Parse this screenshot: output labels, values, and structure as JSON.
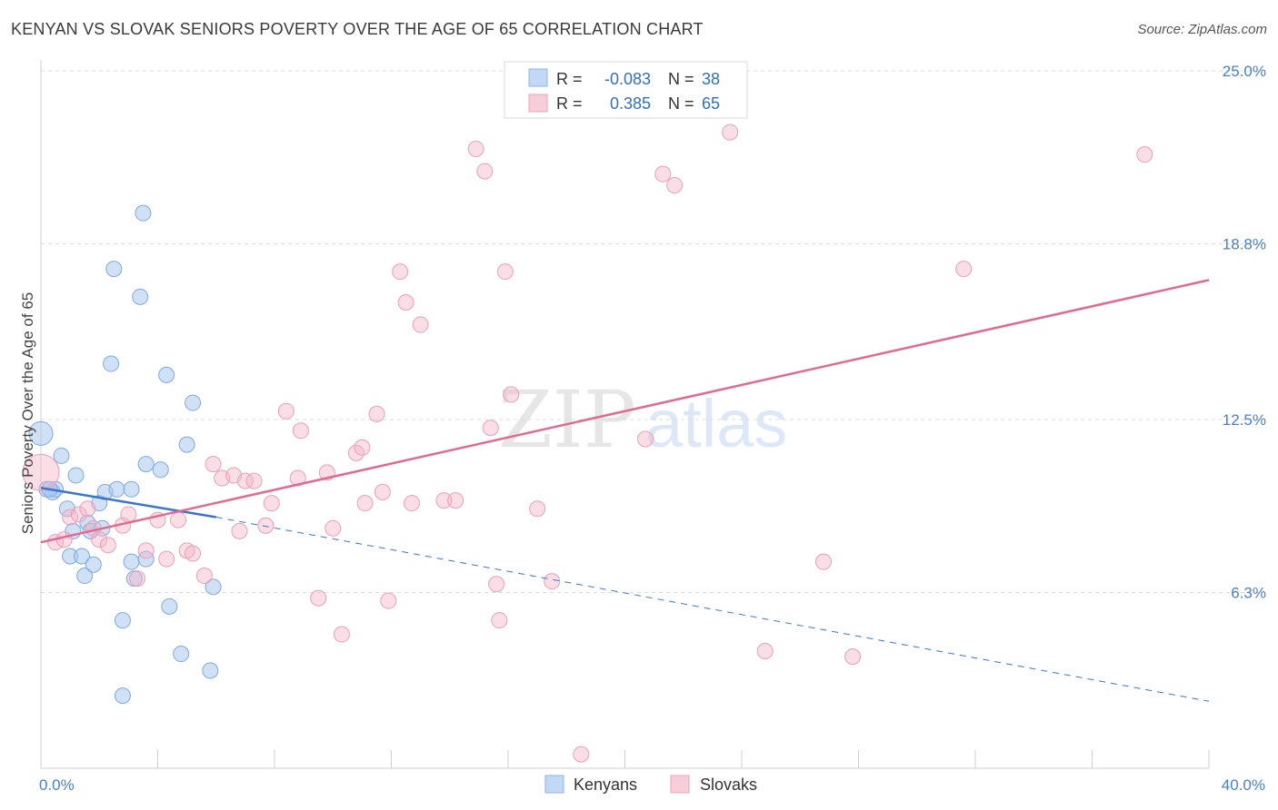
{
  "title": "KENYAN VS SLOVAK SENIORS POVERTY OVER THE AGE OF 65 CORRELATION CHART",
  "source": "Source: ZipAtlas.com",
  "watermark": {
    "zip": "ZIP",
    "atlas": "atlas"
  },
  "colors": {
    "kenyans": "#a9c8ef",
    "kenyans_line": "#3a76d0",
    "slovaks": "#f4b5c8",
    "slovaks_line": "#e06a92",
    "tick_text": "#4a7fd0"
  },
  "legend": {
    "rows": [
      {
        "r_label": "R =",
        "r_value": "-0.083",
        "n_label": "N =",
        "n_value": "38"
      },
      {
        "r_label": "R =",
        "r_value": "0.385",
        "n_label": "N =",
        "n_value": "65"
      }
    ]
  },
  "chart_data": {
    "type": "scatter",
    "title": "KENYAN VS SLOVAK SENIORS POVERTY OVER THE AGE OF 65 CORRELATION CHART",
    "xlabel": "",
    "ylabel": "Seniors Poverty Over the Age of 65",
    "xlim": [
      0,
      40
    ],
    "ylim": [
      0,
      25
    ],
    "x_tick_labels": [
      "0.0%",
      "40.0%"
    ],
    "y_ticks": [
      6.3,
      12.5,
      18.8,
      25.0
    ],
    "y_tick_labels": [
      "6.3%",
      "12.5%",
      "18.8%",
      "25.0%"
    ],
    "grid": true,
    "legend_position": "top-center and bottom",
    "series": [
      {
        "name": "Kenyans",
        "r": -0.083,
        "n": 38,
        "trend": {
          "x0": 0.0,
          "y0": 10.05,
          "x1": 6.0,
          "y1": 9.0,
          "dashed_to_x": 40.0,
          "dashed_to_y": 2.4
        },
        "points": [
          [
            0.0,
            12.0
          ],
          [
            0.2,
            10.0
          ],
          [
            0.4,
            9.9
          ],
          [
            0.5,
            10.0
          ],
          [
            0.7,
            11.2
          ],
          [
            0.9,
            9.3
          ],
          [
            1.0,
            7.6
          ],
          [
            1.1,
            8.5
          ],
          [
            1.2,
            10.5
          ],
          [
            1.4,
            7.6
          ],
          [
            1.5,
            6.9
          ],
          [
            1.6,
            8.8
          ],
          [
            1.7,
            8.5
          ],
          [
            1.8,
            7.3
          ],
          [
            2.0,
            9.5
          ],
          [
            2.1,
            8.6
          ],
          [
            2.2,
            9.9
          ],
          [
            2.4,
            14.5
          ],
          [
            2.5,
            17.9
          ],
          [
            2.6,
            10.0
          ],
          [
            2.8,
            5.3
          ],
          [
            2.8,
            2.6
          ],
          [
            3.1,
            10.0
          ],
          [
            3.1,
            7.4
          ],
          [
            3.2,
            6.8
          ],
          [
            3.4,
            16.9
          ],
          [
            3.5,
            19.9
          ],
          [
            3.6,
            7.5
          ],
          [
            3.6,
            10.9
          ],
          [
            4.1,
            10.7
          ],
          [
            4.3,
            14.1
          ],
          [
            4.4,
            5.8
          ],
          [
            4.8,
            4.1
          ],
          [
            5.0,
            11.6
          ],
          [
            5.2,
            13.1
          ],
          [
            5.8,
            3.5
          ],
          [
            5.9,
            6.5
          ],
          [
            0.3,
            10.0
          ]
        ]
      },
      {
        "name": "Slovaks",
        "r": 0.385,
        "n": 65,
        "trend": {
          "x0": 0.0,
          "y0": 8.1,
          "x1": 40.0,
          "y1": 17.5
        },
        "points": [
          [
            0.0,
            10.6
          ],
          [
            0.5,
            8.1
          ],
          [
            0.8,
            8.2
          ],
          [
            1.0,
            9.0
          ],
          [
            1.3,
            9.1
          ],
          [
            1.6,
            9.3
          ],
          [
            1.8,
            8.6
          ],
          [
            2.0,
            8.2
          ],
          [
            2.3,
            8.0
          ],
          [
            2.8,
            8.7
          ],
          [
            3.0,
            9.1
          ],
          [
            3.3,
            6.8
          ],
          [
            3.6,
            7.8
          ],
          [
            4.0,
            8.9
          ],
          [
            4.3,
            7.5
          ],
          [
            4.7,
            8.9
          ],
          [
            5.0,
            7.8
          ],
          [
            5.2,
            7.7
          ],
          [
            5.6,
            6.9
          ],
          [
            5.9,
            10.9
          ],
          [
            6.2,
            10.4
          ],
          [
            6.6,
            10.5
          ],
          [
            6.8,
            8.5
          ],
          [
            7.0,
            10.3
          ],
          [
            7.3,
            10.3
          ],
          [
            7.7,
            8.7
          ],
          [
            7.9,
            9.5
          ],
          [
            8.4,
            12.8
          ],
          [
            8.8,
            10.4
          ],
          [
            8.9,
            12.1
          ],
          [
            9.5,
            6.1
          ],
          [
            9.8,
            10.6
          ],
          [
            10.0,
            8.6
          ],
          [
            10.3,
            4.8
          ],
          [
            10.8,
            11.3
          ],
          [
            11.0,
            11.5
          ],
          [
            11.1,
            9.5
          ],
          [
            11.5,
            12.7
          ],
          [
            11.7,
            9.9
          ],
          [
            11.9,
            6.0
          ],
          [
            12.3,
            17.8
          ],
          [
            12.5,
            16.7
          ],
          [
            12.7,
            9.5
          ],
          [
            13.0,
            15.9
          ],
          [
            13.8,
            9.6
          ],
          [
            14.2,
            9.6
          ],
          [
            14.9,
            22.2
          ],
          [
            15.2,
            21.4
          ],
          [
            15.4,
            12.2
          ],
          [
            15.6,
            6.6
          ],
          [
            15.7,
            5.3
          ],
          [
            15.9,
            17.8
          ],
          [
            16.1,
            13.4
          ],
          [
            17.0,
            9.3
          ],
          [
            17.5,
            6.7
          ],
          [
            18.5,
            0.5
          ],
          [
            20.7,
            11.8
          ],
          [
            21.3,
            21.3
          ],
          [
            21.7,
            20.9
          ],
          [
            23.6,
            22.8
          ],
          [
            24.8,
            4.2
          ],
          [
            26.8,
            7.4
          ],
          [
            27.8,
            4.0
          ],
          [
            31.6,
            17.9
          ],
          [
            37.8,
            22.0
          ]
        ]
      }
    ]
  }
}
